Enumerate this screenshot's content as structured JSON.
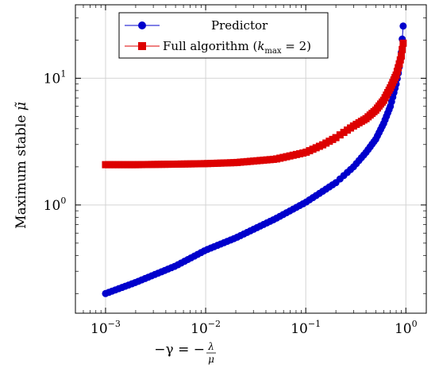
{
  "chart_data": {
    "type": "line",
    "x_scale": "log",
    "y_scale": "log",
    "xlim": [
      0.0005,
      1.6
    ],
    "ylim": [
      0.14,
      38
    ],
    "grid": true,
    "legend_position": "top-center",
    "x_ticks": [
      {
        "value": 0.001,
        "base": "10",
        "exp": "−3"
      },
      {
        "value": 0.01,
        "base": "10",
        "exp": "−2"
      },
      {
        "value": 0.1,
        "base": "10",
        "exp": "−1"
      },
      {
        "value": 1,
        "base": "10",
        "exp": "0"
      }
    ],
    "y_ticks": [
      {
        "value": 1,
        "base": "10",
        "exp": "0"
      },
      {
        "value": 10,
        "base": "10",
        "exp": "1"
      }
    ],
    "xlabel": {
      "prefix": "−γ = −",
      "numerator": "λ",
      "denominator": "μ"
    },
    "ylabel": {
      "text": "Maximum stable ",
      "symbol": "μ̃"
    },
    "series": [
      {
        "name": "Predictor",
        "color": "#0000cc",
        "marker": "circle",
        "x": [
          0.001,
          0.002,
          0.005,
          0.01,
          0.02,
          0.05,
          0.1,
          0.2,
          0.3,
          0.4,
          0.5,
          0.6,
          0.7,
          0.8,
          0.85,
          0.9,
          0.95
        ],
        "y": [
          0.2,
          0.245,
          0.33,
          0.44,
          0.55,
          0.78,
          1.05,
          1.5,
          2.0,
          2.6,
          3.3,
          4.4,
          6.0,
          9.0,
          11.5,
          16.0,
          29.0
        ]
      },
      {
        "name": "Full algorithm (k_max = 2)",
        "legend_parts": {
          "before": "Full algorithm (",
          "k": "k",
          "sub": "max",
          "after": " = 2)"
        },
        "color": "#dd0000",
        "marker": "square",
        "x": [
          0.001,
          0.002,
          0.005,
          0.01,
          0.02,
          0.05,
          0.1,
          0.15,
          0.2,
          0.3,
          0.4,
          0.5,
          0.6,
          0.7,
          0.8,
          0.85,
          0.9,
          0.95
        ],
        "y": [
          2.08,
          2.08,
          2.1,
          2.12,
          2.16,
          2.3,
          2.6,
          3.0,
          3.4,
          4.2,
          4.8,
          5.6,
          6.7,
          8.4,
          10.6,
          12.5,
          15.0,
          20.0
        ]
      }
    ]
  }
}
